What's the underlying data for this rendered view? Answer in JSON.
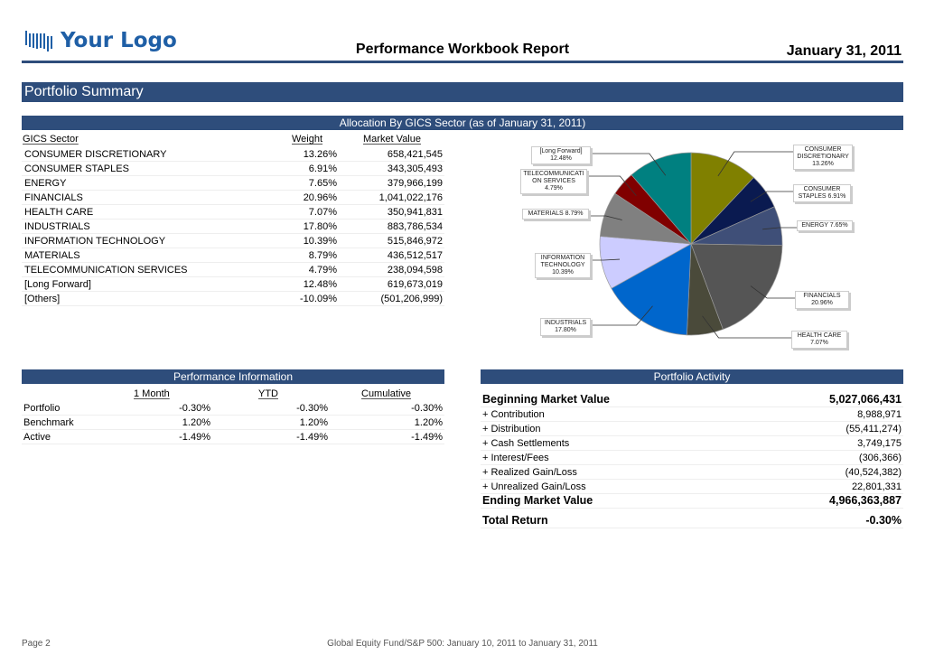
{
  "header": {
    "logo_text": "Your Logo",
    "title": "Performance Workbook Report",
    "date": "January 31, 2011"
  },
  "section_title": "Portfolio Summary",
  "allocation": {
    "title": "Allocation By GICS Sector (as of January 31, 2011)",
    "columns": [
      "GICS Sector",
      "Weight",
      "Market Value"
    ],
    "rows": [
      [
        "CONSUMER DISCRETIONARY",
        "13.26%",
        "658,421,545"
      ],
      [
        "CONSUMER STAPLES",
        "6.91%",
        "343,305,493"
      ],
      [
        "ENERGY",
        "7.65%",
        "379,966,199"
      ],
      [
        "FINANCIALS",
        "20.96%",
        "1,041,022,176"
      ],
      [
        "HEALTH CARE",
        "7.07%",
        "350,941,831"
      ],
      [
        "INDUSTRIALS",
        "17.80%",
        "883,786,534"
      ],
      [
        "INFORMATION TECHNOLOGY",
        "10.39%",
        "515,846,972"
      ],
      [
        "MATERIALS",
        "8.79%",
        "436,512,517"
      ],
      [
        "TELECOMMUNICATION SERVICES",
        "4.79%",
        "238,094,598"
      ],
      [
        "[Long Forward]",
        "12.48%",
        "619,673,019"
      ],
      [
        "[Others]",
        "-10.09%",
        "(501,206,999)"
      ]
    ]
  },
  "chart_data": {
    "type": "pie",
    "title": "",
    "categories": [
      "CONSUMER DISCRETIONARY",
      "CONSUMER STAPLES",
      "ENERGY",
      "FINANCIALS",
      "HEALTH CARE",
      "INDUSTRIALS",
      "INFORMATION TECHNOLOGY",
      "MATERIALS",
      "TELECOMMUNICATI ON SERVICES",
      "[Long Forward]"
    ],
    "values": [
      13.26,
      6.91,
      7.65,
      20.96,
      7.07,
      17.8,
      10.39,
      8.79,
      4.79,
      12.48
    ],
    "labels": [
      "13.26%",
      "6.91%",
      "7.65%",
      "20.96%",
      "7.07%",
      "17.80%",
      "10.39%",
      "8.79%",
      "4.79%",
      "12.48%"
    ],
    "colors": [
      "#808000",
      "#0a1a50",
      "#3f4f78",
      "#555555",
      "#4a4a3a",
      "#0066cc",
      "#ccccff",
      "#808080",
      "#800000",
      "#008080"
    ]
  },
  "performance": {
    "title": "Performance Information",
    "columns": [
      "1 Month",
      "YTD",
      "Cumulative"
    ],
    "rows": [
      [
        "Portfolio",
        "-0.30%",
        "-0.30%",
        "-0.30%"
      ],
      [
        "Benchmark",
        "1.20%",
        "1.20%",
        "1.20%"
      ],
      [
        "Active",
        "-1.49%",
        "-1.49%",
        "-1.49%"
      ]
    ]
  },
  "activity": {
    "title": "Portfolio Activity",
    "beginning": [
      "Beginning Market Value",
      "5,027,066,431"
    ],
    "items": [
      [
        "+ Contribution",
        "8,988,971"
      ],
      [
        "+ Distribution",
        "(55,411,274)"
      ],
      [
        "+ Cash Settlements",
        "3,749,175"
      ],
      [
        "+ Interest/Fees",
        "(306,366)"
      ],
      [
        "+ Realized Gain/Loss",
        "(40,524,382)"
      ],
      [
        "+ Unrealized Gain/Loss",
        "22,801,331"
      ]
    ],
    "ending": [
      "Ending Market Value",
      "4,966,363,887"
    ],
    "total": [
      "Total Return",
      "-0.30%"
    ]
  },
  "footer": {
    "page": "Page 2",
    "range": "Global Equity Fund/S&P 500: January 10, 2011 to January 31, 2011"
  }
}
